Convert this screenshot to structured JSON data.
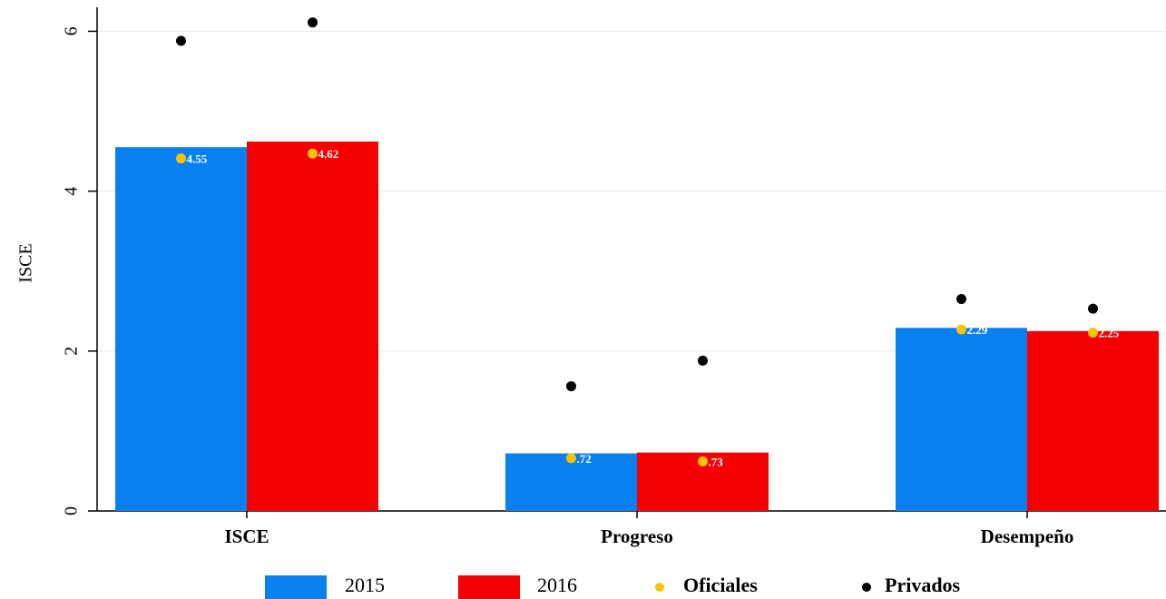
{
  "chart_data": {
    "type": "bar",
    "y_label": "ISCE",
    "categories": [
      "ISCE",
      "Progreso",
      "Desempeño"
    ],
    "series": [
      {
        "name": "2015",
        "color": "#0a7ff0",
        "values": [
          4.55,
          0.72,
          2.29
        ],
        "value_labels": [
          "4.55",
          ".72",
          "2.29"
        ]
      },
      {
        "name": "2016",
        "color": "#f50000",
        "values": [
          4.62,
          0.73,
          2.25
        ],
        "value_labels": [
          "4.62",
          ".73",
          "2.25"
        ]
      }
    ],
    "markers": [
      {
        "name": "Oficiales",
        "color": "#f5c400",
        "values": [
          [
            4.41,
            0.66,
            2.27
          ],
          [
            4.47,
            0.62,
            2.23
          ]
        ]
      },
      {
        "name": "Privados",
        "color": "#000000",
        "values": [
          [
            5.88,
            1.56,
            2.65
          ],
          [
            6.11,
            1.88,
            2.53
          ]
        ]
      }
    ],
    "ylim": [
      0,
      6.3
    ],
    "yticks": [
      0,
      2,
      4,
      6
    ],
    "grid": true
  }
}
